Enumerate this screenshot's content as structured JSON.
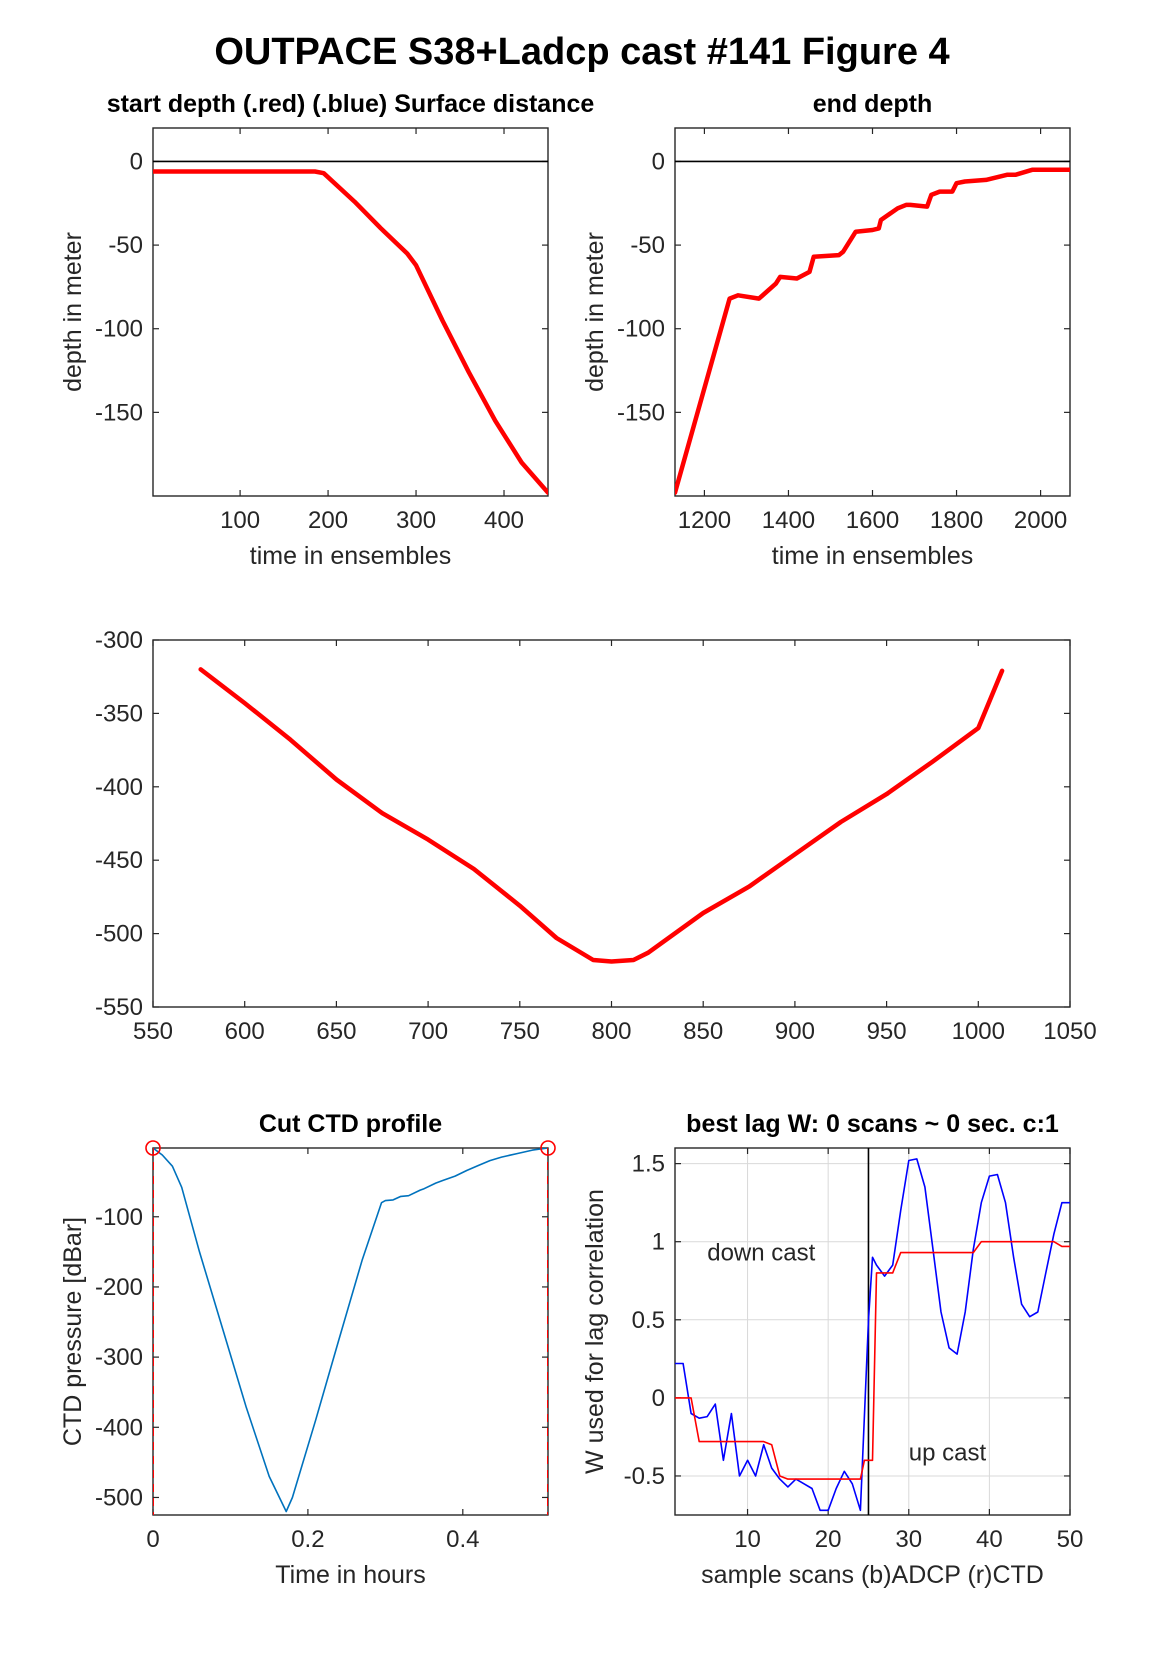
{
  "figure": {
    "title": "OUTPACE S38+Ladcp cast #141    Figure 4"
  },
  "chart_data": [
    {
      "id": "p1",
      "type": "line",
      "title": "start depth (.red) (.blue) Surface distance",
      "xlabel": "time in ensembles",
      "ylabel": "depth in meter",
      "xlim": [
        1,
        450
      ],
      "ylim": [
        -200,
        20
      ],
      "xticks": [
        100,
        200,
        300,
        400
      ],
      "yticks": [
        0,
        -50,
        -100,
        -150
      ],
      "hline": 0,
      "series": [
        {
          "color": "#ff0000",
          "x": [
            1,
            100,
            185,
            195,
            230,
            260,
            290,
            300,
            330,
            360,
            390,
            420,
            450
          ],
          "y": [
            -6,
            -6,
            -6,
            -7,
            -24,
            -40,
            -55,
            -62,
            -95,
            -126,
            -155,
            -180,
            -198
          ]
        }
      ]
    },
    {
      "id": "p2",
      "type": "line",
      "title": "end depth",
      "xlabel": "time in ensembles",
      "ylabel": "depth in meter",
      "xlim": [
        1130,
        2070
      ],
      "ylim": [
        -200,
        20
      ],
      "xticks": [
        1200,
        1400,
        1600,
        1800,
        2000
      ],
      "yticks": [
        0,
        -50,
        -100,
        -150
      ],
      "hline": 0,
      "series": [
        {
          "color": "#ff0000",
          "x": [
            1130,
            1260,
            1280,
            1330,
            1370,
            1380,
            1420,
            1450,
            1460,
            1520,
            1530,
            1560,
            1600,
            1615,
            1620,
            1660,
            1680,
            1690,
            1730,
            1740,
            1760,
            1790,
            1800,
            1820,
            1870,
            1920,
            1940,
            1980,
            2070
          ],
          "y": [
            -198,
            -82,
            -80,
            -82,
            -73,
            -69,
            -70,
            -66,
            -57,
            -56,
            -54,
            -42,
            -41,
            -40,
            -35,
            -28,
            -26,
            -26,
            -27,
            -20,
            -18,
            -18,
            -13,
            -12,
            -11,
            -8,
            -8,
            -5,
            -5
          ]
        }
      ]
    },
    {
      "id": "p3",
      "type": "line",
      "title": "",
      "xlabel": "",
      "ylabel": "",
      "xlim": [
        550,
        1050
      ],
      "ylim": [
        -550,
        -300
      ],
      "xticks": [
        550,
        600,
        650,
        700,
        750,
        800,
        850,
        900,
        950,
        1000,
        1050
      ],
      "yticks": [
        -300,
        -350,
        -400,
        -450,
        -500,
        -550
      ],
      "series": [
        {
          "color": "#ff0000",
          "x": [
            576,
            600,
            625,
            650,
            675,
            700,
            725,
            750,
            770,
            790,
            800,
            812,
            820,
            850,
            875,
            900,
            925,
            950,
            975,
            1000,
            1013
          ],
          "y": [
            -320,
            -343,
            -368,
            -395,
            -418,
            -436,
            -456,
            -481,
            -503,
            -518,
            -519,
            -518,
            -513,
            -486,
            -468,
            -446,
            -424,
            -405,
            -383,
            -360,
            -321
          ]
        }
      ]
    },
    {
      "id": "p4",
      "type": "line",
      "title": "Cut CTD profile",
      "xlabel": "Time in hours",
      "ylabel": "CTD pressure [dBar]",
      "xlim": [
        0,
        0.51
      ],
      "ylim": [
        -525,
        -2
      ],
      "xticks": [
        0,
        0.2,
        0.4
      ],
      "yticks": [
        -100,
        -200,
        -300,
        -400,
        -500
      ],
      "series": [
        {
          "color": "#0072bd",
          "x": [
            0,
            0.012,
            0.025,
            0.037,
            0.06,
            0.09,
            0.12,
            0.15,
            0.172,
            0.18,
            0.21,
            0.24,
            0.27,
            0.295,
            0.3,
            0.31,
            0.32,
            0.33,
            0.345,
            0.35,
            0.365,
            0.375,
            0.39,
            0.405,
            0.42,
            0.435,
            0.45,
            0.47,
            0.49,
            0.51
          ],
          "y": [
            -2,
            -12,
            -28,
            -58,
            -150,
            -260,
            -370,
            -470,
            -520,
            -500,
            -390,
            -275,
            -162,
            -80,
            -77,
            -76,
            -71,
            -70,
            -62,
            -60,
            -52,
            -48,
            -42,
            -34,
            -27,
            -20,
            -15,
            -10,
            -5,
            -2
          ]
        },
        {
          "color": "#ff0000",
          "style": "dashed-vline",
          "x": [
            0,
            0.51
          ]
        }
      ],
      "markers": [
        {
          "color": "#ff0000",
          "x": [
            0,
            0.51
          ],
          "y": [
            -2,
            -2
          ]
        }
      ]
    },
    {
      "id": "p5",
      "type": "line",
      "title": "best lag W: 0 scans ~ 0 sec.  c:1",
      "xlabel": "sample scans (b)ADCP (r)CTD",
      "ylabel": "W used for lag correlation",
      "xlim": [
        1,
        50
      ],
      "ylim": [
        -0.75,
        1.6
      ],
      "xticks": [
        10,
        20,
        30,
        40,
        50
      ],
      "yticks": [
        1.5,
        1,
        0.5,
        0,
        -0.5
      ],
      "grid": true,
      "vline": 25,
      "annotations": [
        {
          "text": "down cast",
          "x": 5,
          "y": 0.88
        },
        {
          "text": "up cast",
          "x": 30,
          "y": -0.4
        }
      ],
      "series": [
        {
          "color": "#0000ff",
          "x": [
            1,
            2,
            3,
            4,
            5,
            6,
            7,
            8,
            9,
            10,
            11,
            12,
            13,
            14,
            15,
            16,
            17,
            18,
            19,
            20,
            21,
            22,
            23,
            24,
            25,
            25.5,
            26,
            27,
            28,
            29,
            30,
            31,
            32,
            33,
            34,
            35,
            36,
            37,
            38,
            39,
            40,
            41,
            42,
            43,
            44,
            45,
            46,
            47,
            48,
            49,
            50
          ],
          "y": [
            0.22,
            0.22,
            -0.1,
            -0.13,
            -0.12,
            -0.04,
            -0.4,
            -0.1,
            -0.5,
            -0.4,
            -0.5,
            -0.3,
            -0.45,
            -0.52,
            -0.57,
            -0.52,
            -0.55,
            -0.58,
            -0.72,
            -0.72,
            -0.58,
            -0.47,
            -0.55,
            -0.72,
            0.5,
            0.9,
            0.85,
            0.78,
            0.85,
            1.2,
            1.52,
            1.53,
            1.35,
            0.95,
            0.55,
            0.32,
            0.28,
            0.55,
            0.95,
            1.25,
            1.42,
            1.43,
            1.25,
            0.9,
            0.6,
            0.52,
            0.55,
            0.8,
            1.05,
            1.25,
            1.25
          ]
        },
        {
          "color": "#ff0000",
          "x": [
            1,
            3,
            4,
            12,
            13,
            14,
            15,
            24,
            24.5,
            25.5,
            26,
            28,
            29,
            38,
            39,
            48,
            49,
            50
          ],
          "y": [
            0,
            0,
            -0.28,
            -0.28,
            -0.3,
            -0.5,
            -0.52,
            -0.52,
            -0.4,
            -0.4,
            0.8,
            0.8,
            0.93,
            0.93,
            1.0,
            1.0,
            0.97,
            0.97
          ]
        }
      ]
    }
  ]
}
